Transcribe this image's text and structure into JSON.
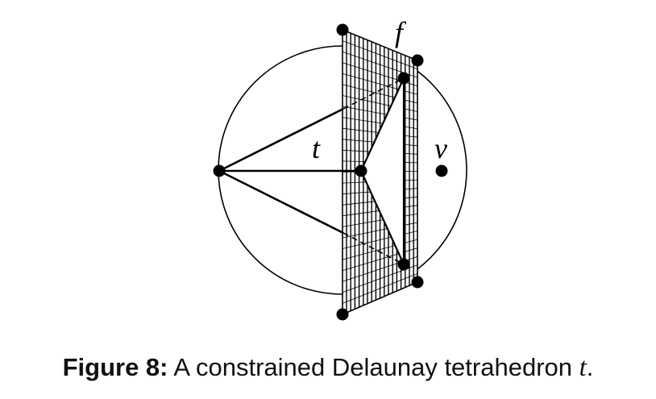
{
  "labels": {
    "face": "f",
    "tetrahedron": "t",
    "vertex": "v"
  },
  "caption": {
    "figure_label": "Figure 8:",
    "text": "A constrained Delaunay tetrahedron",
    "math_symbol": "t",
    "end": "."
  },
  "colors": {
    "ink": "#000000",
    "background": "#ffffff"
  }
}
